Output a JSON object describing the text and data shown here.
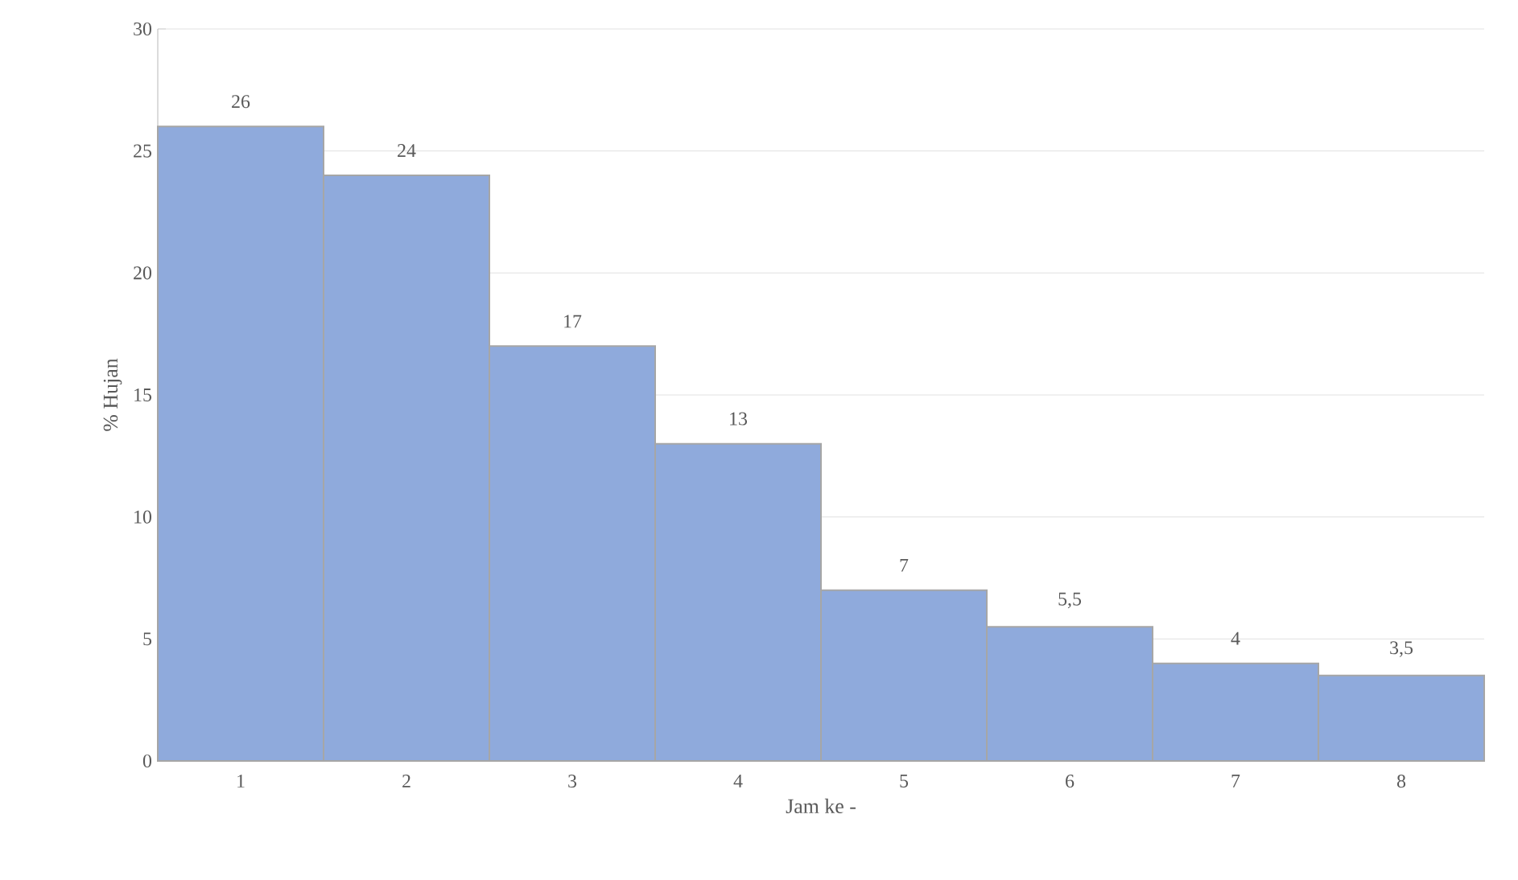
{
  "chart_data": {
    "type": "bar",
    "xlabel": "Jam ke -",
    "ylabel": "% Hujan",
    "categories": [
      "1",
      "2",
      "3",
      "4",
      "5",
      "6",
      "7",
      "8"
    ],
    "values": [
      26,
      24,
      17,
      13,
      7,
      5.5,
      4,
      3.5
    ],
    "value_labels": [
      "26",
      "24",
      "17",
      "13",
      "7",
      "5,5",
      "4",
      "3,5"
    ],
    "color": "#8faadc",
    "ylim": [
      0,
      30
    ],
    "yticks": [
      0,
      5,
      10,
      15,
      20,
      25,
      30
    ],
    "grid": "y"
  }
}
